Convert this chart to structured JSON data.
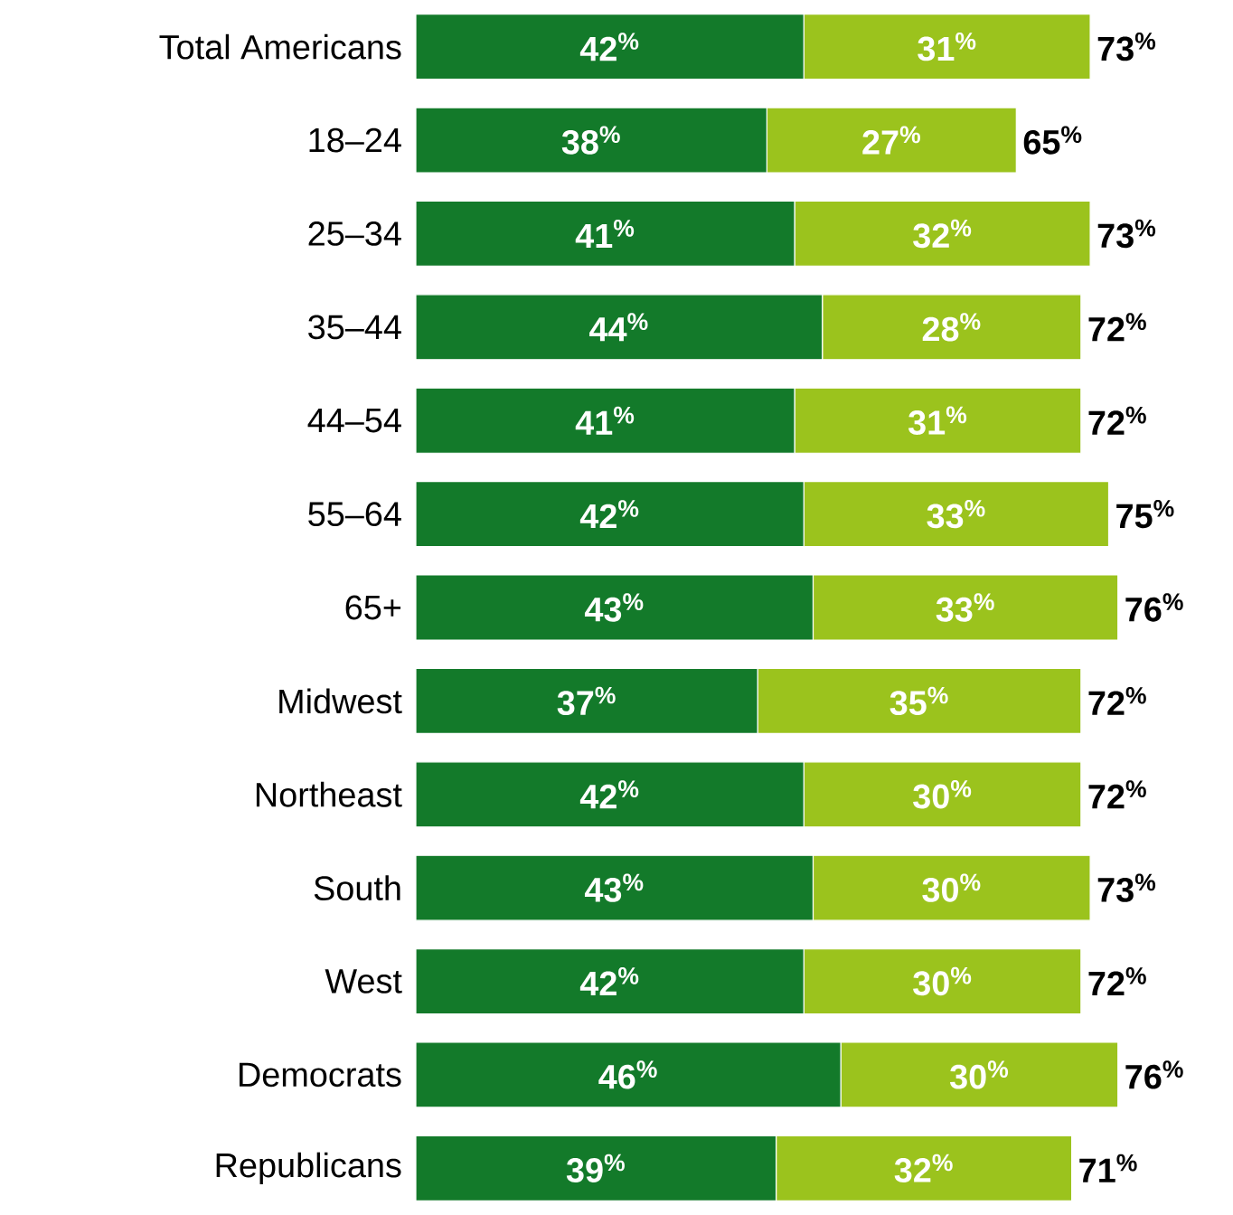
{
  "chart_data": {
    "type": "bar",
    "orientation": "horizontal",
    "stacked": true,
    "tick_labels": "y",
    "categories": [
      "Total Americans",
      "18–24",
      "25–34",
      "35–44",
      "44–54",
      "55–64",
      "65+",
      "Midwest",
      "Northeast",
      "South",
      "West",
      "Democrats",
      "Republicans"
    ],
    "series": [
      {
        "color": "#137a2a",
        "values": [
          42,
          38,
          41,
          44,
          41,
          42,
          43,
          37,
          42,
          43,
          42,
          46,
          39
        ],
        "value_labels": [
          "42$^{%}$",
          "38$^{%}$",
          "41$^{%}$",
          "44$^{%}$",
          "41$^{%}$",
          "42$^{%}$",
          "43$^{%}$",
          "37$^{%}$",
          "42$^{%}$",
          "43$^{%}$",
          "42$^{%}$",
          "46$^{%}$",
          "39$^{%}$"
        ]
      },
      {
        "color": "#9bc31d",
        "values": [
          31,
          27,
          32,
          28,
          31,
          33,
          33,
          35,
          30,
          30,
          30,
          30,
          32
        ],
        "value_labels": [
          "31$^{%}$",
          "27$^{%}$",
          "32$^{%}$",
          "28$^{%}$",
          "31$^{%}$",
          "33$^{%}$",
          "33$^{%}$",
          "35$^{%}$",
          "30$^{%}$",
          "30$^{%}$",
          "30$^{%}$",
          "30$^{%}$",
          "32$^{%}$"
        ]
      }
    ],
    "totals": [
      "73$^{%}$",
      "65$^{%}$",
      "73$^{%}$",
      "72$^{%}$",
      "72$^{%}$",
      "75$^{%}$",
      "76$^{%}$",
      "72$^{%}$",
      "72$^{%}$",
      "73$^{%}$",
      "72$^{%}$",
      "76$^{%}$",
      "71$^{%}$"
    ]
  }
}
